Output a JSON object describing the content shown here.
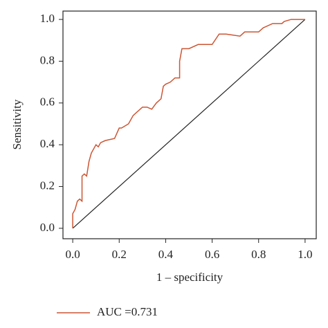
{
  "chart_data": {
    "type": "line",
    "xlabel": "1 – specificity",
    "ylabel": "Sensitivity",
    "x": [
      0,
      0,
      0.01,
      0.02,
      0.03,
      0.04,
      0.04,
      0.05,
      0.06,
      0.07,
      0.08,
      0.1,
      0.11,
      0.12,
      0.14,
      0.18,
      0.2,
      0.21,
      0.24,
      0.26,
      0.3,
      0.32,
      0.34,
      0.36,
      0.38,
      0.39,
      0.4,
      0.42,
      0.44,
      0.46,
      0.46,
      0.47,
      0.5,
      0.54,
      0.6,
      0.63,
      0.66,
      0.72,
      0.74,
      0.8,
      0.82,
      0.86,
      0.9,
      0.91,
      0.94,
      1.0
    ],
    "series": [
      {
        "name": "AUC =0.731",
        "color": "#cc5533",
        "values": [
          0,
          0.07,
          0.09,
          0.13,
          0.14,
          0.13,
          0.25,
          0.26,
          0.25,
          0.32,
          0.36,
          0.4,
          0.39,
          0.41,
          0.42,
          0.43,
          0.48,
          0.48,
          0.5,
          0.54,
          0.58,
          0.58,
          0.57,
          0.6,
          0.62,
          0.68,
          0.69,
          0.7,
          0.72,
          0.72,
          0.8,
          0.86,
          0.86,
          0.88,
          0.88,
          0.93,
          0.93,
          0.92,
          0.94,
          0.94,
          0.96,
          0.98,
          0.98,
          0.99,
          1.0,
          1.0
        ]
      }
    ],
    "xlim": [
      -0.042,
      1.048
    ],
    "ylim": [
      -0.05,
      1.04
    ],
    "xticks": [
      {
        "value": 0,
        "label": "0.0"
      },
      0.2,
      0.4,
      0.6,
      0.8,
      {
        "value": 1,
        "label": "1.0"
      }
    ],
    "yticks": [
      {
        "value": 0,
        "label": "0.0"
      },
      0.2,
      0.4,
      0.6,
      0.8,
      {
        "value": 1,
        "label": "1.0"
      }
    ],
    "legend": "bottom"
  }
}
